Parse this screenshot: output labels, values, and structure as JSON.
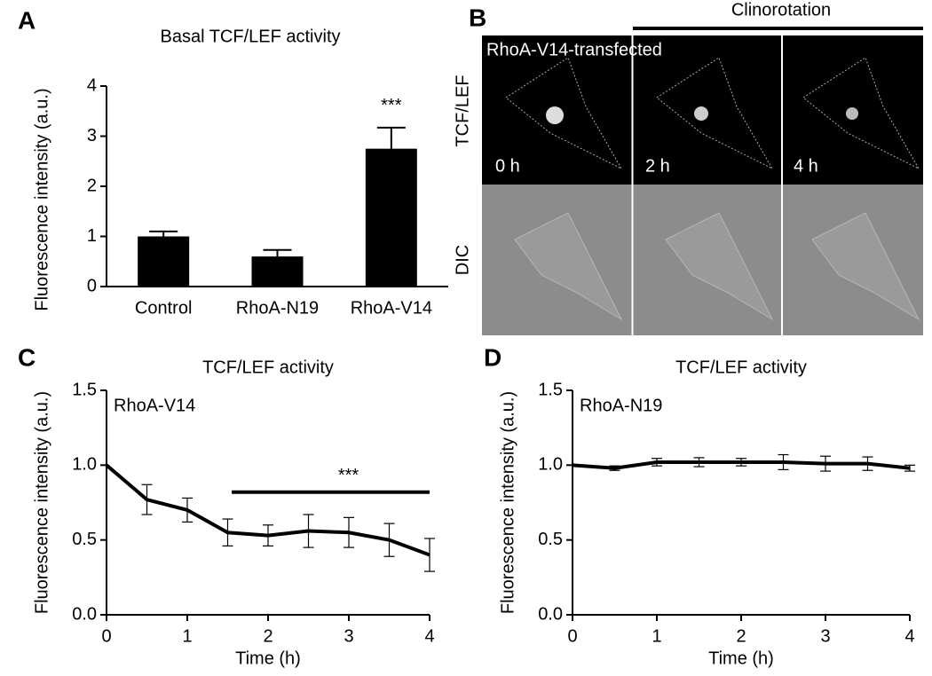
{
  "chart_data": [
    {
      "type": "bar",
      "panel_label": "A",
      "title": "Basal TCF/LEF activity",
      "ylabel": "Fluorescence intensity (a.u.)",
      "categories": [
        "Control",
        "RhoA-N19",
        "RhoA-V14"
      ],
      "values": [
        1.0,
        0.6,
        2.75
      ],
      "errors": [
        0.1,
        0.13,
        0.42
      ],
      "color": "#000000",
      "ylim": [
        0,
        4
      ],
      "yticks": [
        0,
        1,
        2,
        3,
        4
      ],
      "annotations": [
        {
          "text": "***",
          "category": 2
        }
      ]
    },
    {
      "type": "line",
      "panel_label": "C",
      "title": "TCF/LEF activity",
      "xlabel": "Time (h)",
      "ylabel": "Fluorescence intensity (a.u.)",
      "x": [
        0,
        0.5,
        1,
        1.5,
        2,
        2.5,
        3,
        3.5,
        4
      ],
      "series": [
        {
          "name": "RhoA-V14",
          "color": "#000000",
          "values": [
            1.0,
            0.77,
            0.7,
            0.55,
            0.53,
            0.56,
            0.55,
            0.5,
            0.4
          ],
          "errors": [
            0,
            0.1,
            0.08,
            0.09,
            0.07,
            0.11,
            0.1,
            0.11,
            0.11
          ]
        }
      ],
      "xlim": [
        0,
        4
      ],
      "xticks": [
        0,
        1,
        2,
        3,
        4
      ],
      "ylim": [
        0,
        1.5
      ],
      "yticks": [
        {
          "value": 0,
          "label": "0.0"
        },
        {
          "value": 0.5,
          "label": "0.5"
        },
        {
          "value": 1,
          "label": "1.0"
        },
        {
          "value": 1.5,
          "label": "1.5"
        }
      ],
      "annotations": [
        {
          "text": "***",
          "x": [
            1.55,
            4
          ],
          "y": 0.82
        }
      ]
    },
    {
      "type": "line",
      "panel_label": "D",
      "title": "TCF/LEF activity",
      "xlabel": "Time (h)",
      "ylabel": "Fluorescence intensity (a.u.)",
      "x": [
        0,
        0.5,
        1,
        1.5,
        2,
        2.5,
        3,
        3.5,
        4
      ],
      "series": [
        {
          "name": "RhoA-N19",
          "color": "#000000",
          "values": [
            1.0,
            0.98,
            1.02,
            1.02,
            1.02,
            1.02,
            1.01,
            1.01,
            0.98
          ],
          "errors": [
            0,
            0.015,
            0.025,
            0.03,
            0.025,
            0.05,
            0.05,
            0.045,
            0.02
          ]
        }
      ],
      "xlim": [
        0,
        4
      ],
      "xticks": [
        0,
        1,
        2,
        3,
        4
      ],
      "ylim": [
        0,
        1.5
      ],
      "yticks": [
        {
          "value": 0,
          "label": "0.0"
        },
        {
          "value": 0.5,
          "label": "0.5"
        },
        {
          "value": 1,
          "label": "1.0"
        },
        {
          "value": 1.5,
          "label": "1.5"
        }
      ],
      "annotations": []
    }
  ],
  "image_panel": {
    "panel_label": "B",
    "treatment": "Clinorotation",
    "caption": "RhoA-V14-transfected",
    "rows": [
      "TCF/LEF",
      "DIC"
    ],
    "columns": [
      "0 h",
      "2 h",
      "4 h"
    ]
  }
}
